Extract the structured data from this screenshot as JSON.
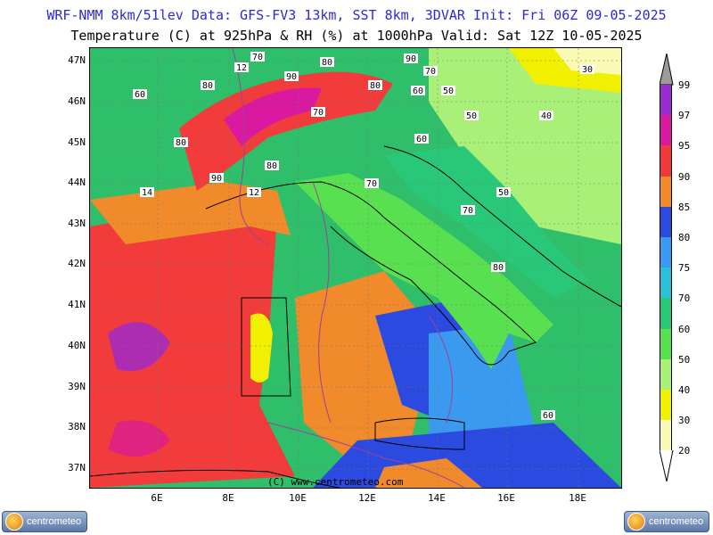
{
  "header": {
    "line1": "WRF-NMM 8km/51lev  Data: GFS-FV3 13km, SST 8km, 3DVAR  Init: Fri 06Z 09-05-2025",
    "line2": "Temperature (C) at 925hPa & RH (%) at 1000hPa  Valid: Sat 12Z 10-05-2025"
  },
  "map": {
    "lat_labels": [
      "47N",
      "46N",
      "45N",
      "44N",
      "43N",
      "42N",
      "41N",
      "40N",
      "39N",
      "38N",
      "37N"
    ],
    "lon_labels": [
      "6E",
      "8E",
      "10E",
      "12E",
      "14E",
      "16E",
      "18E"
    ],
    "copyright": "(C) www.centrometeo.com",
    "contour_labels": [
      "70",
      "80",
      "90",
      "70",
      "12",
      "90",
      "80",
      "80",
      "70",
      "60",
      "50",
      "50",
      "40",
      "30",
      "60",
      "60",
      "80",
      "80",
      "90",
      "70",
      "14",
      "12",
      "80",
      "70",
      "60",
      "50",
      "40"
    ]
  },
  "colorbar": {
    "levels": [
      "99",
      "97",
      "95",
      "90",
      "85",
      "80",
      "75",
      "70",
      "60",
      "50",
      "40",
      "30",
      "20"
    ],
    "colors": [
      "#9a2bd0",
      "#d91aa0",
      "#f03a3a",
      "#f08a2a",
      "#2a4ae0",
      "#3a9af0",
      "#2ac0d8",
      "#28c878",
      "#58e050",
      "#a8f078",
      "#f0f000",
      "#fafab4"
    ]
  },
  "logos": {
    "left": "centrometeo",
    "right": "centrometeo"
  },
  "colors": {
    "title_accent": "#2a2ad8"
  }
}
